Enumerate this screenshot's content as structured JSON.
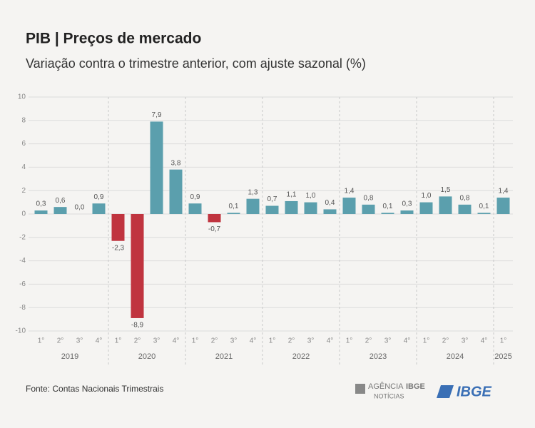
{
  "chart_data": {
    "type": "bar",
    "title": "PIB | Preços de mercado",
    "subtitle": "Variação contra o trimestre anterior, com ajuste sazonal (%)",
    "categories": [
      "1°",
      "2°",
      "3°",
      "4°",
      "1°",
      "2°",
      "3°",
      "4°",
      "1°",
      "2°",
      "3°",
      "4°",
      "1°",
      "2°",
      "3°",
      "4°",
      "1°",
      "2°",
      "3°",
      "4°",
      "1°",
      "2°",
      "3°",
      "4°",
      "1°"
    ],
    "groups": [
      "2019",
      "2020",
      "2021",
      "2022",
      "2023",
      "2024",
      "2025"
    ],
    "values": [
      0.3,
      0.6,
      0.0,
      0.9,
      -2.3,
      -8.9,
      7.9,
      3.8,
      0.9,
      -0.7,
      0.1,
      1.3,
      0.7,
      1.1,
      1.0,
      0.4,
      1.4,
      0.8,
      0.1,
      0.3,
      1.0,
      1.5,
      0.8,
      0.1,
      1.4
    ],
    "value_labels": [
      "0,3",
      "0,6",
      "0,0",
      "0,9",
      "-2,3",
      "-8,9",
      "7,9",
      "3,8",
      "0,9",
      "-0,7",
      "0,1",
      "1,3",
      "0,7",
      "1,1",
      "1,0",
      "0,4",
      "1,4",
      "0,8",
      "0,1",
      "0,3",
      "1,0",
      "1,5",
      "0,8",
      "0,1",
      "1,4"
    ],
    "color": "#5b9fad",
    "negative_color": "#c0343f",
    "ylim": [
      -10,
      10
    ],
    "yticks": [
      -10,
      -8,
      -6,
      -4,
      -2,
      0,
      2,
      4,
      6,
      8,
      10
    ],
    "grid": true,
    "source": "Fonte: Contas Nacionais Trimestrais",
    "logos": [
      "AGÊNCIA",
      "IBGE",
      "NOTÍCIAS",
      "IBGE"
    ]
  }
}
